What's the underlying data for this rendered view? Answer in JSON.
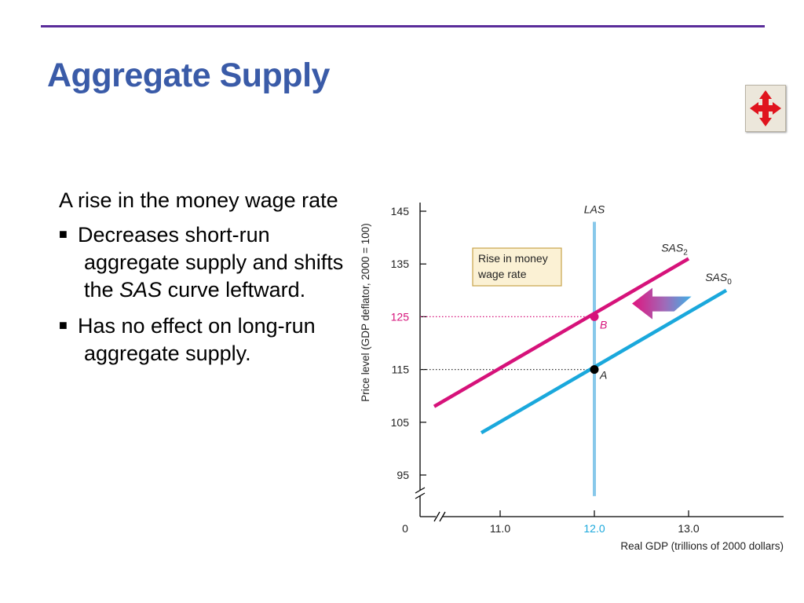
{
  "slide": {
    "title": "Aggregate Supply",
    "lead_text": "A rise in the money wage rate",
    "bullets": [
      {
        "text_a": "Decreases short-run aggregate supply and shifts the ",
        "text_italic": "SAS",
        "text_b": " curve leftward."
      },
      {
        "text_a": "Has no effect on long-run aggregate supply.",
        "text_italic": "",
        "text_b": ""
      }
    ],
    "nav_icon": "four-way-arrow-icon"
  },
  "chart_data": {
    "type": "line",
    "xlabel": "Real GDP (trillions of 2000 dollars)",
    "ylabel": "Price level (GDP deflator, 2000 = 100)",
    "x_ticks": [
      "11.0",
      "12.0",
      "13.0"
    ],
    "y_ticks": [
      "95",
      "105",
      "115",
      "125",
      "135",
      "145"
    ],
    "origin_label": "0",
    "xlim": [
      10.2,
      13.8
    ],
    "ylim": [
      91,
      147
    ],
    "series": [
      {
        "name": "LAS",
        "color": "#87c8ea",
        "points": [
          [
            12.0,
            143
          ],
          [
            12.0,
            91
          ]
        ]
      },
      {
        "name": "SAS",
        "subscript": "2",
        "color": "#d6127a",
        "points": [
          [
            10.3,
            108
          ],
          [
            13.0,
            136
          ]
        ]
      },
      {
        "name": "SAS",
        "subscript": "0",
        "color": "#1aa8dc",
        "points": [
          [
            10.8,
            103
          ],
          [
            13.4,
            130
          ]
        ]
      }
    ],
    "points": [
      {
        "label": "A",
        "x": 12.0,
        "y": 115,
        "color": "#000000"
      },
      {
        "label": "B",
        "x": 12.0,
        "y": 125,
        "color": "#d6127a"
      }
    ],
    "annotation": {
      "lines": [
        "Rise in money",
        "wage rate"
      ],
      "x": 10.7,
      "y": 137
    },
    "shift_arrow": {
      "from_x": 13.03,
      "to_x": 12.4,
      "y": 127.5
    },
    "highlight_tick": "12.0",
    "colors": {
      "axis": "#000000",
      "highlight": "#d6127a",
      "x_highlight": "#1aa8dc",
      "annotation_bg": "#fbf1d4",
      "annotation_border": "#c9a44a"
    }
  }
}
